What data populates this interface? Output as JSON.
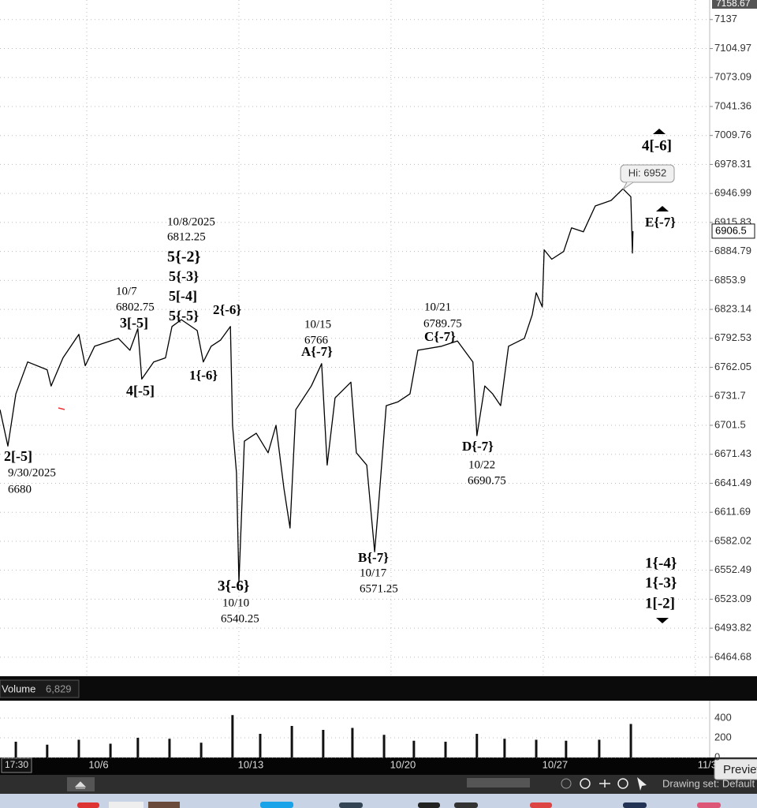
{
  "chart_data": [
    {
      "type": "line",
      "color": "#000000",
      "log_scale": true,
      "grid": true,
      "x": [
        -2.85,
        -2.59,
        -2.33,
        -1.94,
        -1.3,
        -1.17,
        -0.78,
        -0.26,
        -0.05,
        0.26,
        1.04,
        1.42,
        1.68,
        1.81,
        2.2,
        2.59,
        2.8,
        3.11,
        3.63,
        3.83,
        4.09,
        4.4,
        4.72,
        4.79,
        4.92,
        5.0,
        5.18,
        5.57,
        5.96,
        6.22,
        6.48,
        6.68,
        6.87,
        7.38,
        7.72,
        7.9,
        8.16,
        8.68,
        8.86,
        9.2,
        9.46,
        9.59,
        9.84,
        10.23,
        10.62,
        10.88,
        11.66,
        12.18,
        12.69,
        12.82,
        13.08,
        13.34,
        13.6,
        13.86,
        14.38,
        14.64,
        14.77,
        14.97,
        15.03,
        15.28,
        15.67,
        15.93,
        16.32,
        16.71,
        17.23,
        17.62,
        17.88,
        17.93,
        17.95
      ],
      "values": [
        6717.75,
        6680,
        6734.25,
        6767.75,
        6759.5,
        6742.5,
        6772,
        6796.75,
        6763.75,
        6784.25,
        6792.5,
        6780,
        6802.75,
        6749.75,
        6767.75,
        6772,
        6805,
        6812.25,
        6800.75,
        6767.75,
        6784.25,
        6790.75,
        6805,
        6701.5,
        6652.25,
        6540.25,
        6685,
        6693.25,
        6673,
        6701.5,
        6636,
        6595.5,
        6717.75,
        6742.5,
        6766,
        6660.25,
        6730,
        6746.5,
        6673,
        6660.25,
        6571.25,
        6619.75,
        6722,
        6726,
        6734.25,
        6780,
        6784.25,
        6789.75,
        6767.75,
        6690.75,
        6742.5,
        6734.25,
        6722,
        6784.25,
        6792.5,
        6817.5,
        6840.75,
        6825.75,
        6886.5,
        6876.5,
        6884.75,
        6910,
        6905.75,
        6933.5,
        6939.5,
        6952,
        6943.5,
        6883,
        6906.5
      ],
      "xlim": [
        -2.85,
        20.47
      ],
      "xticks": [
        {
          "value": 0,
          "label": "10/6"
        },
        {
          "value": 5,
          "label": "10/13"
        },
        {
          "value": 10,
          "label": "10/20"
        },
        {
          "value": 15,
          "label": "10/27"
        },
        {
          "value": 20,
          "label": "11/3"
        }
      ],
      "ylim": [
        6445.6,
        7158.67
      ],
      "yticks": [
        7137,
        7104.97,
        7073.09,
        7041.36,
        7009.76,
        6978.31,
        6946.99,
        6915.83,
        6884.79,
        6853.9,
        6823.14,
        6792.53,
        6762.05,
        6731.7,
        6701.5,
        6671.43,
        6641.49,
        6611.69,
        6582.02,
        6552.49,
        6523.09,
        6493.82,
        6464.68
      ],
      "last_price": 6906.5,
      "high_label": "Hi: 6952",
      "annotations": [
        "2[-5]",
        "9/30/2025",
        "6680",
        "10/7",
        "6802.75",
        "3[-5]",
        "4[-5]",
        "10/8/2025",
        "6812.25",
        "5{-2}",
        "5{-3}",
        "5[-4]",
        "5{-5}",
        "2{-6}",
        "1{-6}",
        "10/15",
        "6766",
        "A{-7}",
        "3{-6}",
        "10/10",
        "6540.25",
        "B{-7}",
        "10/17",
        "6571.25",
        "10/21",
        "6789.75",
        "C{-7}",
        "D{-7}",
        "10/22",
        "6690.75",
        "4[-6]",
        "E{-7}",
        "1{-4}",
        "1{-3}",
        "1[-2]"
      ]
    },
    {
      "type": "bar",
      "title": "Volume",
      "current_label": "6,829",
      "color": "#111111",
      "x": [
        -2.33,
        -1.3,
        -0.26,
        0.78,
        1.68,
        2.72,
        3.76,
        4.79,
        5.7,
        6.74,
        7.77,
        8.73,
        9.77,
        10.75,
        11.79,
        12.82,
        13.73,
        14.77,
        15.75,
        16.84,
        17.88
      ],
      "values": [
        160,
        130,
        180,
        140,
        200,
        190,
        150,
        430,
        240,
        320,
        280,
        300,
        230,
        170,
        160,
        240,
        190,
        180,
        170,
        180,
        340
      ],
      "xlim": [
        -2.85,
        20.47
      ],
      "ylim": [
        0,
        576
      ],
      "yticks": [
        0,
        200,
        400
      ]
    }
  ],
  "ui": {
    "time": "17:30",
    "preview": "Preview",
    "drawing_set": "Drawing set: Default"
  }
}
